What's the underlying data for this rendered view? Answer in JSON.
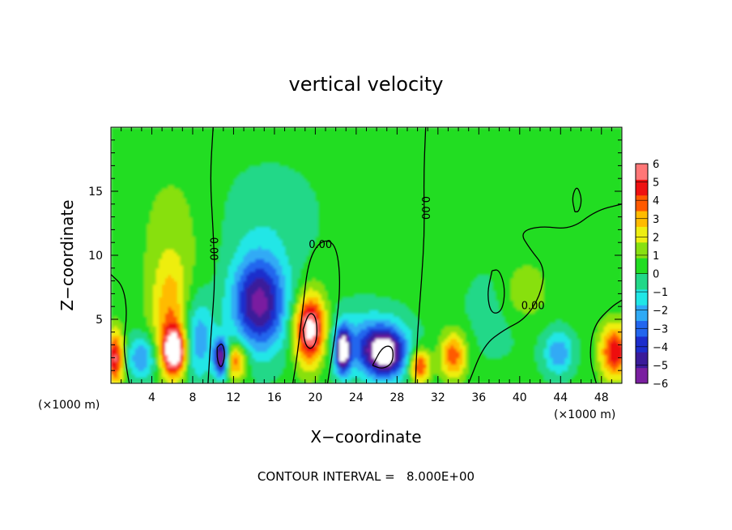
{
  "chart_data": {
    "type": "heatmap",
    "title": "vertical velocity",
    "xlabel": "X−coordinate",
    "ylabel": "Z−coordinate",
    "x_unit": "(×1000 m)",
    "x_unit_right": "(×1000 m)",
    "xlim": [
      0,
      50
    ],
    "ylim": [
      0,
      20
    ],
    "x_ticks": [
      4,
      8,
      12,
      16,
      20,
      24,
      28,
      32,
      36,
      40,
      44,
      48
    ],
    "y_ticks": [
      5,
      10,
      15
    ],
    "colorbar": {
      "min": -6,
      "max": 6,
      "tick_values": [
        6,
        5,
        4,
        3,
        2,
        1,
        0,
        -1,
        -2,
        -3,
        -4,
        -5,
        -6
      ],
      "tick_labels": [
        "6",
        "5",
        "4",
        "3",
        "2",
        "1",
        "0",
        "−1",
        "−2",
        "−3",
        "−4",
        "−5",
        "−6"
      ],
      "colors": [
        "#7a1fa0",
        "#3a1b9a",
        "#1c2dcc",
        "#2266ee",
        "#30aaf5",
        "#20e6e6",
        "#22d888",
        "#22dd22",
        "#88e010",
        "#eeee11",
        "#ffbb00",
        "#ff5a00",
        "#ee1111",
        "#ff7777"
      ]
    },
    "background_value": 0.3,
    "cells": [
      {
        "x": 5.8,
        "z": 5.5,
        "sx": 1.3,
        "sz": 3.0,
        "v": 2.8
      },
      {
        "x": 6.2,
        "z": 2.5,
        "sx": 0.8,
        "sz": 1.3,
        "v": 6.8
      },
      {
        "x": 0.4,
        "z": 2.0,
        "sx": 0.6,
        "sz": 1.5,
        "v": 5.0
      },
      {
        "x": 3.0,
        "z": 2.0,
        "sx": 1.0,
        "sz": 1.2,
        "v": -3.0
      },
      {
        "x": 8.5,
        "z": 3.5,
        "sx": 1.1,
        "sz": 2.3,
        "v": -2.8
      },
      {
        "x": 10.8,
        "z": 2.0,
        "sx": 0.5,
        "sz": 1.0,
        "v": -6.5
      },
      {
        "x": 12.2,
        "z": 1.8,
        "sx": 0.8,
        "sz": 1.0,
        "v": 4.0
      },
      {
        "x": 14.5,
        "z": 6.3,
        "sx": 1.9,
        "sz": 2.6,
        "v": -5.8
      },
      {
        "x": 19.5,
        "z": 4.2,
        "sx": 1.1,
        "sz": 1.9,
        "v": 6.8
      },
      {
        "x": 22.7,
        "z": 2.6,
        "sx": 0.5,
        "sz": 1.2,
        "v": -6.5
      },
      {
        "x": 26.8,
        "z": 2.4,
        "sx": 1.4,
        "sz": 1.3,
        "v": -6.4
      },
      {
        "x": 24.8,
        "z": 3.2,
        "sx": 2.8,
        "sz": 1.8,
        "v": -2.5
      },
      {
        "x": 30.2,
        "z": 1.4,
        "sx": 0.7,
        "sz": 0.9,
        "v": 4.5
      },
      {
        "x": 33.5,
        "z": 2.2,
        "sx": 0.9,
        "sz": 1.3,
        "v": 3.8
      },
      {
        "x": 40.5,
        "z": 7.2,
        "sx": 1.5,
        "sz": 1.6,
        "v": 1.5
      },
      {
        "x": 43.8,
        "z": 2.4,
        "sx": 1.0,
        "sz": 1.2,
        "v": -2.8
      },
      {
        "x": 49.3,
        "z": 2.5,
        "sx": 1.0,
        "sz": 1.5,
        "v": 4.8
      },
      {
        "x": 15.5,
        "z": 13.0,
        "sx": 3.5,
        "sz": 3.0,
        "v": -0.8
      },
      {
        "x": 6.0,
        "z": 12.0,
        "sx": 2.5,
        "sz": 4.0,
        "v": 0.8
      },
      {
        "x": 37.5,
        "z": 5.5,
        "sx": 2.5,
        "sz": 3.0,
        "v": -0.6
      }
    ],
    "contour_lines": [
      {
        "label": "0.00",
        "label_x": 10.0,
        "label_z": 10.5,
        "label_rotate": 90,
        "points": [
          [
            9.5,
            0
          ],
          [
            9.8,
            4.0
          ],
          [
            10.2,
            8.0
          ],
          [
            10.0,
            12.0
          ],
          [
            9.7,
            16.0
          ],
          [
            10.0,
            20.0
          ]
        ]
      },
      {
        "label": "0.00",
        "label_x": 20.5,
        "label_z": 10.8,
        "label_rotate": 0,
        "points": [
          [
            17.8,
            0
          ],
          [
            18.2,
            2.0
          ],
          [
            18.8,
            6.0
          ],
          [
            19.3,
            9.5
          ],
          [
            20.5,
            11.2
          ],
          [
            22.0,
            11.0
          ],
          [
            22.5,
            8.0
          ],
          [
            22.0,
            4.0
          ],
          [
            21.2,
            0
          ]
        ]
      },
      {
        "label": "0.00",
        "label_x": 30.7,
        "label_z": 13.7,
        "label_rotate": 90,
        "points": [
          [
            29.8,
            0
          ],
          [
            30.0,
            4.0
          ],
          [
            30.4,
            8.0
          ],
          [
            30.7,
            12.0
          ],
          [
            30.6,
            16.0
          ],
          [
            30.8,
            20.0
          ]
        ]
      },
      {
        "label": "0.00",
        "label_x": 41.3,
        "label_z": 6.0,
        "label_rotate": 0,
        "points": [
          [
            35.0,
            0
          ],
          [
            36.5,
            3.0
          ],
          [
            38.5,
            4.2
          ],
          [
            40.5,
            5.0
          ],
          [
            42.0,
            6.8
          ],
          [
            42.5,
            9.0
          ],
          [
            41.0,
            10.5
          ],
          [
            40.0,
            11.8
          ],
          [
            42.0,
            12.3
          ],
          [
            45.0,
            12.0
          ],
          [
            47.5,
            13.5
          ],
          [
            50.0,
            14.0
          ]
        ]
      },
      {
        "label": "",
        "label_x": 0,
        "label_z": 0,
        "label_rotate": 0,
        "points": [
          [
            37.3,
            8.8
          ],
          [
            36.8,
            7.0
          ],
          [
            37.2,
            5.4
          ],
          [
            38.3,
            5.6
          ],
          [
            38.6,
            7.4
          ],
          [
            38.0,
            8.9
          ],
          [
            37.3,
            8.8
          ]
        ]
      },
      {
        "label": "",
        "label_x": 0,
        "label_z": 0,
        "label_rotate": 0,
        "points": [
          [
            45.4,
            13.4
          ],
          [
            45.1,
            14.5
          ],
          [
            45.6,
            15.5
          ],
          [
            46.1,
            14.4
          ],
          [
            45.8,
            13.4
          ],
          [
            45.4,
            13.4
          ]
        ]
      },
      {
        "label": "",
        "label_x": 0,
        "label_z": 0,
        "label_rotate": 0,
        "points": [
          [
            0,
            8.5
          ],
          [
            1.2,
            7.6
          ],
          [
            1.6,
            5.5
          ],
          [
            1.2,
            3.0
          ],
          [
            1.6,
            0.8
          ],
          [
            1.8,
            0
          ]
        ]
      },
      {
        "label": "",
        "label_x": 0,
        "label_z": 0,
        "label_rotate": 0,
        "points": [
          [
            47.5,
            0
          ],
          [
            46.8,
            2.0
          ],
          [
            47.2,
            4.5
          ],
          [
            49.0,
            6.0
          ],
          [
            50.0,
            6.5
          ]
        ]
      },
      {
        "label": "",
        "label_x": 0,
        "label_z": 0,
        "label_rotate": 0,
        "points": [
          [
            10.4,
            2.8
          ],
          [
            10.9,
            3.2
          ],
          [
            11.2,
            2.2
          ],
          [
            10.8,
            1.1
          ],
          [
            10.4,
            1.8
          ],
          [
            10.4,
            2.8
          ]
        ]
      },
      {
        "label": "",
        "label_x": 0,
        "label_z": 0,
        "label_rotate": 0,
        "points": [
          [
            18.8,
            4.2
          ],
          [
            19.4,
            5.6
          ],
          [
            20.1,
            5.2
          ],
          [
            20.2,
            3.4
          ],
          [
            19.6,
            2.6
          ],
          [
            19.0,
            3.0
          ],
          [
            18.8,
            4.2
          ]
        ]
      },
      {
        "label": "",
        "label_x": 0,
        "label_z": 0,
        "label_rotate": 0,
        "points": [
          [
            25.6,
            1.4
          ],
          [
            26.6,
            2.9
          ],
          [
            27.6,
            2.9
          ],
          [
            27.6,
            1.6
          ],
          [
            26.6,
            1.1
          ],
          [
            25.6,
            1.4
          ]
        ]
      }
    ],
    "footer": "CONTOUR INTERVAL =   8.000E+00"
  }
}
